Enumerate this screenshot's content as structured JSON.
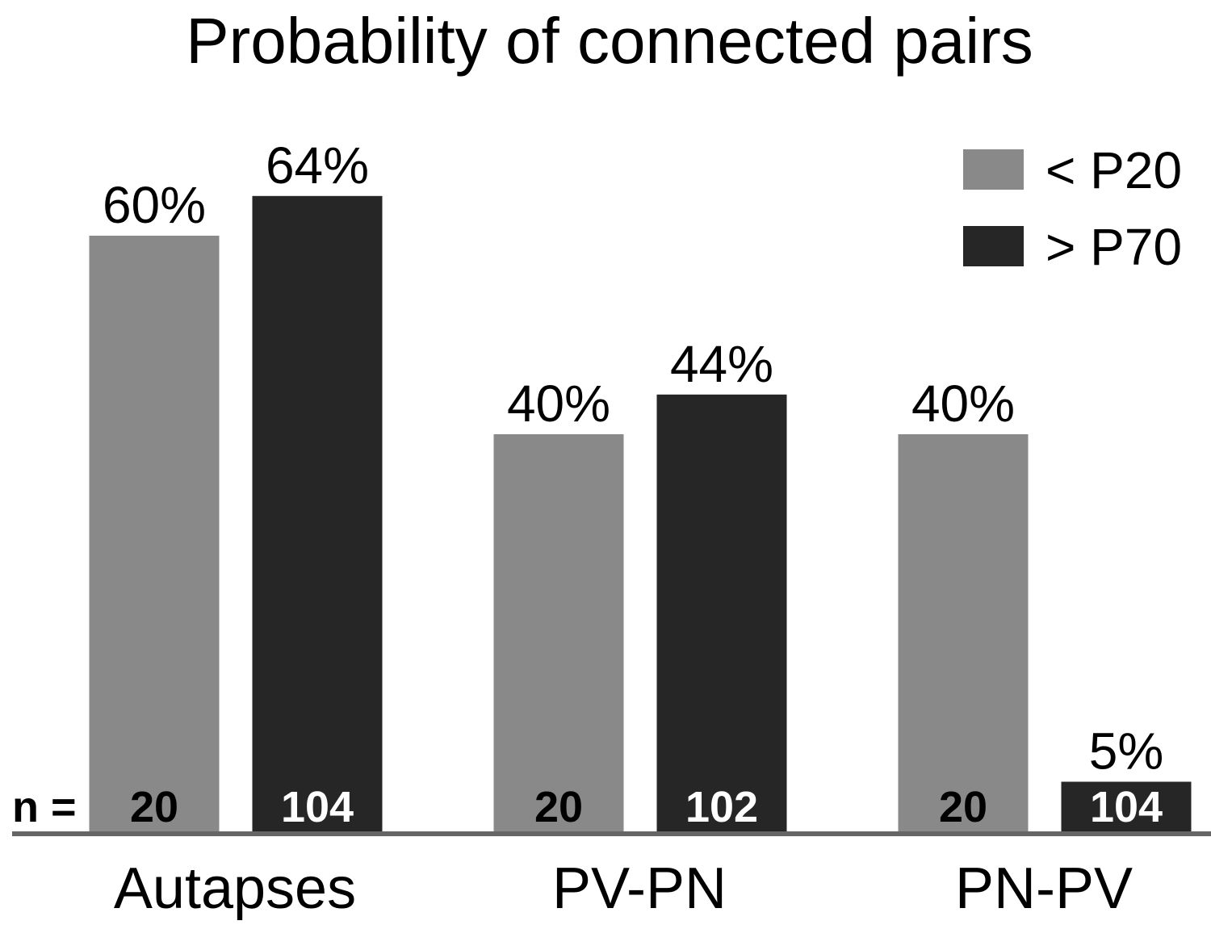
{
  "chart_data": {
    "type": "bar",
    "title": "Probability of connected pairs",
    "categories": [
      "Autapses",
      "PV-PN",
      "PN-PV"
    ],
    "series": [
      {
        "name": "< P20",
        "color": "#898989",
        "values": [
          60,
          40,
          40
        ],
        "value_labels": [
          "60%",
          "40%",
          "40%"
        ],
        "n": [
          20,
          20,
          20
        ]
      },
      {
        "name": "> P70",
        "color": "#262626",
        "values": [
          64,
          44,
          5
        ],
        "value_labels": [
          "64%",
          "44%",
          "5%"
        ],
        "n": [
          104,
          102,
          104
        ]
      }
    ],
    "n_label": "n =",
    "legend": "top-right"
  }
}
